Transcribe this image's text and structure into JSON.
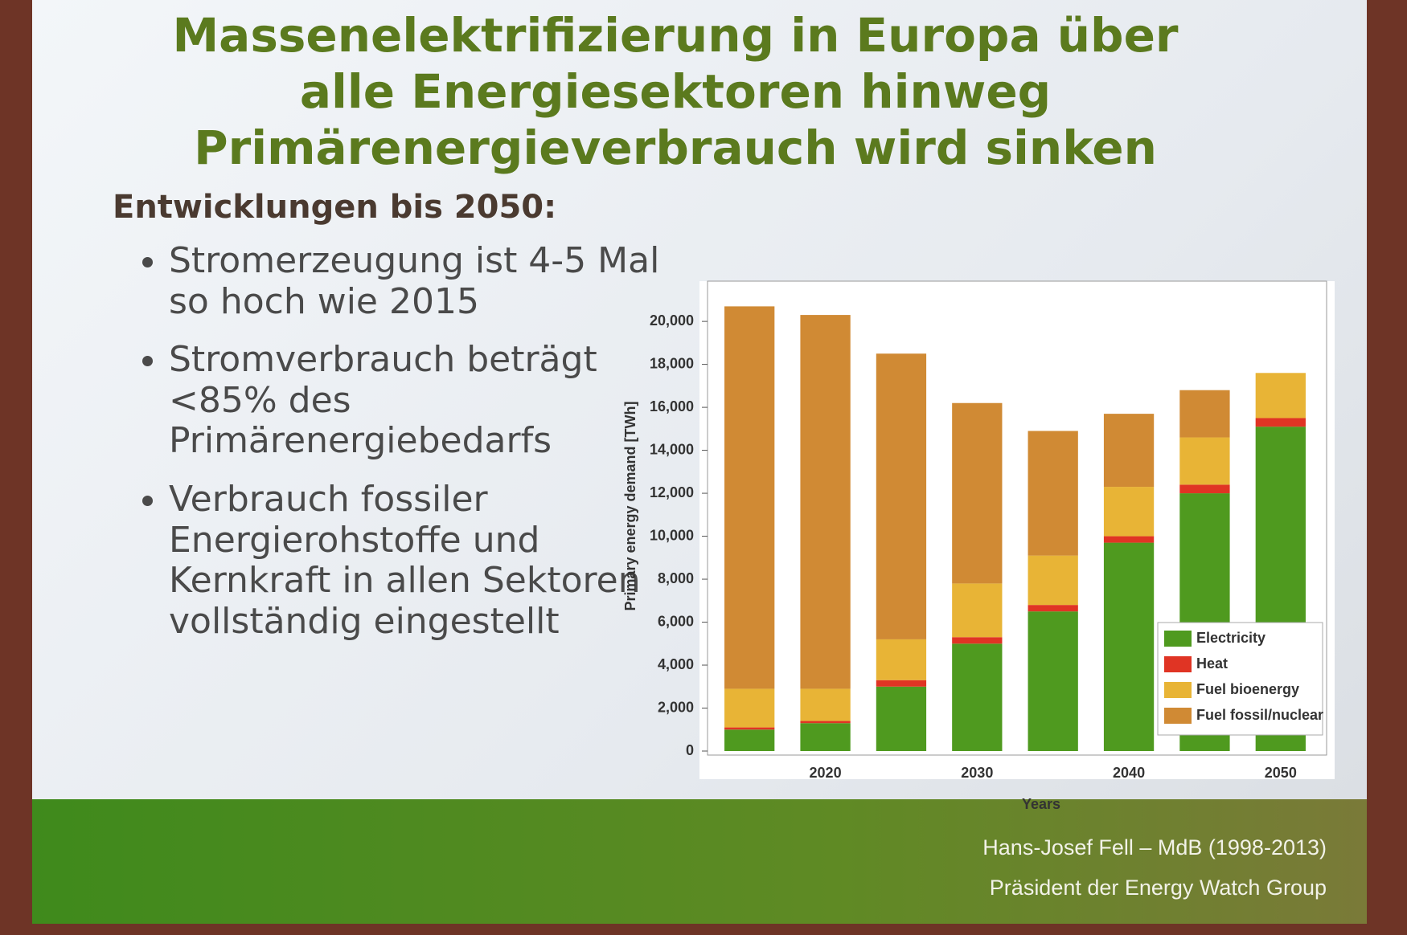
{
  "slide": {
    "title_lines": [
      "Massenelektrifizierung in Europa über",
      "alle Energiesektoren hinweg",
      "Primärenergieverbrauch wird sinken"
    ],
    "subheading": "Entwicklungen bis 2050:",
    "bullets": [
      "Stromerzeugung ist 4-5 Mal so hoch wie 2015",
      "Stromverbrauch beträgt <85% des Primärenergiebedarfs",
      "Verbrauch fossiler Energierohstoffe und Kernkraft in allen Sektoren vollständig eingestellt"
    ],
    "footer_lines": [
      "Hans-Josef Fell – MdB (1998-2013)",
      "Präsident der Energy Watch Group"
    ]
  },
  "chart_data": {
    "type": "stacked_bar",
    "x_label": "Years",
    "y_label": "Primary energy demand [TWh]",
    "categories": [
      null,
      "2020",
      null,
      "2030",
      null,
      "2040",
      null,
      "2050"
    ],
    "series": [
      {
        "name": "Electricity",
        "color": "#4f9a1f",
        "values": [
          1000,
          1300,
          3000,
          5000,
          6500,
          9700,
          12000,
          15100
        ]
      },
      {
        "name": "Heat",
        "color": "#e03424",
        "values": [
          100,
          100,
          300,
          300,
          300,
          300,
          400,
          400
        ]
      },
      {
        "name": "Fuel bioenergy",
        "color": "#e8b436",
        "values": [
          1800,
          1500,
          1900,
          2500,
          2300,
          2300,
          2200,
          2100
        ]
      },
      {
        "name": "Fuel fossil/nuclear",
        "color": "#d08a34",
        "values": [
          17800,
          17400,
          13300,
          8400,
          5800,
          3400,
          2200,
          0
        ]
      }
    ],
    "ylim": [
      0,
      21500
    ],
    "yticks": [
      0,
      {
        "value": 2000,
        "label": "2,000"
      },
      {
        "value": 4000,
        "label": "4,000"
      },
      {
        "value": 6000,
        "label": "6,000"
      },
      {
        "value": 8000,
        "label": "8,000"
      },
      {
        "value": 10000,
        "label": "10,000"
      },
      {
        "value": 12000,
        "label": "12,000"
      },
      {
        "value": 14000,
        "label": "14,000"
      },
      {
        "value": 16000,
        "label": "16,000"
      },
      {
        "value": 18000,
        "label": "18,000"
      },
      {
        "value": 20000,
        "label": "20,000"
      }
    ],
    "legend": "lower-right",
    "grid": false
  }
}
